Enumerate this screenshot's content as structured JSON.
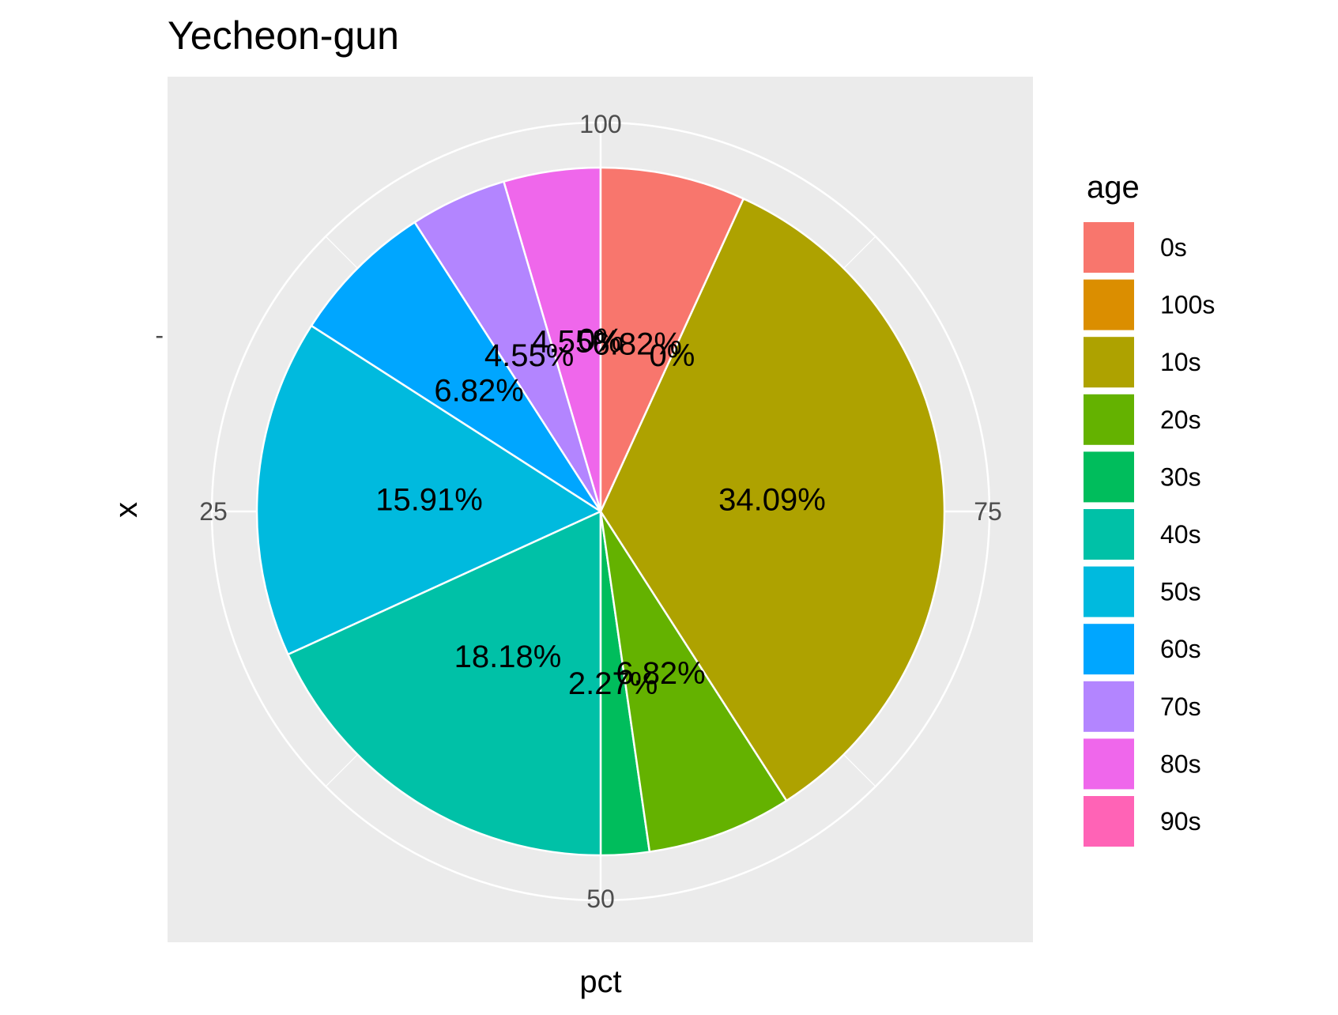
{
  "chart_data": {
    "type": "pie",
    "title": "Yecheon-gun",
    "xlabel": "pct",
    "ylabel": "x",
    "y_tick_label": "-",
    "theta_ticks": [
      {
        "value": 100,
        "label": "100"
      },
      {
        "value": 25,
        "label": "25"
      },
      {
        "value": 50,
        "label": "50"
      },
      {
        "value": 75,
        "label": "75"
      }
    ],
    "legend_title": "age",
    "legend_position": "right",
    "grid": true,
    "categories": [
      "0s",
      "100s",
      "10s",
      "20s",
      "30s",
      "40s",
      "50s",
      "60s",
      "70s",
      "80s",
      "90s"
    ],
    "colors": [
      "#F8766D",
      "#DB8E00",
      "#AEA200",
      "#64B200",
      "#00BD5C",
      "#00C1A7",
      "#00BADE",
      "#00A6FF",
      "#B385FF",
      "#EF67EB",
      "#FF63B6"
    ],
    "stack_order": [
      "90s",
      "80s",
      "70s",
      "60s",
      "50s",
      "40s",
      "30s",
      "20s",
      "10s",
      "100s",
      "0s"
    ],
    "values": [
      6.82,
      0,
      34.09,
      6.82,
      2.27,
      18.18,
      15.91,
      6.82,
      4.55,
      4.55,
      0
    ],
    "labels": [
      "6.82%",
      "0%",
      "34.09%",
      "6.82%",
      "2.27%",
      "18.18%",
      "15.91%",
      "6.82%",
      "4.55%",
      "4.55%",
      "0%"
    ]
  }
}
